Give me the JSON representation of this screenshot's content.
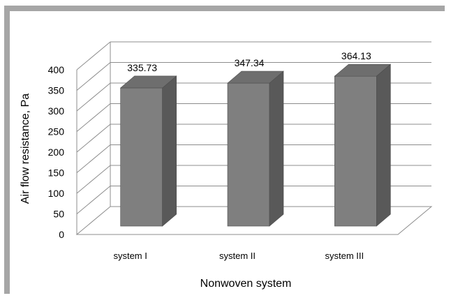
{
  "chart_data": {
    "type": "bar",
    "categories": [
      "system I",
      "system II",
      "system III"
    ],
    "values": [
      335.73,
      347.34,
      364.13
    ],
    "data_labels": [
      "335.73",
      "347.34",
      "364.13"
    ],
    "xlabel": "Nonwoven system",
    "ylabel": "Air flow resistance, Pa",
    "ylim": [
      0,
      400
    ],
    "yticks": [
      "0",
      "50",
      "100",
      "150",
      "200",
      "250",
      "300",
      "350",
      "400"
    ],
    "grid": true,
    "legend": "none",
    "colors": {
      "bar_front": "#7f7f7f",
      "bar_side": "#595959",
      "bar_top": "#6e6e6e",
      "grid": "#8c8c8c"
    }
  }
}
